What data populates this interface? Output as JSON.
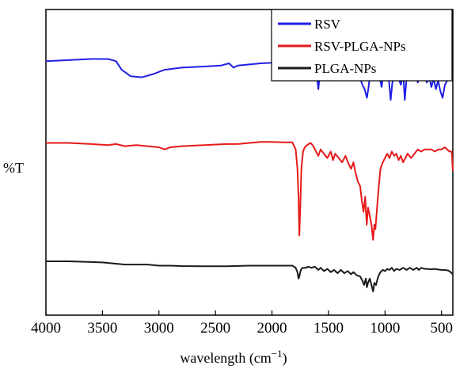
{
  "chart_data": {
    "type": "line",
    "xlabel": "wavelength (cm",
    "xlabel_sup": "−1",
    "xlabel_close": ")",
    "ylabel": "%T",
    "xlim": [
      4000,
      400
    ],
    "x_reversed": true,
    "xticks": [
      4000,
      3500,
      3000,
      2500,
      2000,
      1500,
      1000,
      500
    ],
    "legend": "top-right",
    "grid": false,
    "series": [
      {
        "name": "RSV",
        "color": "#1f1fe6",
        "points": [
          [
            4000,
            38
          ],
          [
            3800,
            38.5
          ],
          [
            3600,
            39
          ],
          [
            3450,
            39
          ],
          [
            3380,
            38
          ],
          [
            3330,
            34
          ],
          [
            3250,
            31
          ],
          [
            3150,
            30.5
          ],
          [
            3050,
            32
          ],
          [
            2950,
            34
          ],
          [
            2800,
            35
          ],
          [
            2600,
            35.5
          ],
          [
            2450,
            36
          ],
          [
            2380,
            37
          ],
          [
            2340,
            35
          ],
          [
            2300,
            36
          ],
          [
            2100,
            37
          ],
          [
            1900,
            37.5
          ],
          [
            1750,
            38.5
          ],
          [
            1680,
            39
          ],
          [
            1630,
            40
          ],
          [
            1610,
            36
          ],
          [
            1600,
            30
          ],
          [
            1590,
            25
          ],
          [
            1580,
            30
          ],
          [
            1560,
            32
          ],
          [
            1545,
            34
          ],
          [
            1530,
            37
          ],
          [
            1515,
            33
          ],
          [
            1500,
            30
          ],
          [
            1480,
            34
          ],
          [
            1460,
            31
          ],
          [
            1445,
            29
          ],
          [
            1430,
            33
          ],
          [
            1410,
            35
          ],
          [
            1380,
            36
          ],
          [
            1350,
            32
          ],
          [
            1330,
            35
          ],
          [
            1300,
            34
          ],
          [
            1270,
            31
          ],
          [
            1250,
            33
          ],
          [
            1220,
            30
          ],
          [
            1200,
            27
          ],
          [
            1180,
            25
          ],
          [
            1160,
            21
          ],
          [
            1145,
            26
          ],
          [
            1130,
            34
          ],
          [
            1110,
            32
          ],
          [
            1090,
            30
          ],
          [
            1070,
            34
          ],
          [
            1050,
            31
          ],
          [
            1030,
            26
          ],
          [
            1010,
            33
          ],
          [
            990,
            36
          ],
          [
            965,
            29
          ],
          [
            950,
            20
          ],
          [
            935,
            28
          ],
          [
            910,
            34
          ],
          [
            880,
            30
          ],
          [
            860,
            27
          ],
          [
            840,
            33
          ],
          [
            825,
            20
          ],
          [
            810,
            30
          ],
          [
            790,
            34
          ],
          [
            760,
            31
          ],
          [
            730,
            35
          ],
          [
            710,
            28
          ],
          [
            690,
            33
          ],
          [
            670,
            30
          ],
          [
            650,
            32
          ],
          [
            630,
            28
          ],
          [
            610,
            31
          ],
          [
            590,
            26
          ],
          [
            570,
            30
          ],
          [
            550,
            25
          ],
          [
            530,
            29
          ],
          [
            510,
            24
          ],
          [
            490,
            21
          ],
          [
            470,
            27
          ],
          [
            450,
            29
          ],
          [
            420,
            30
          ],
          [
            400,
            30
          ]
        ]
      },
      {
        "name": "RSV-PLGA-NPs",
        "color": "#e61a1a",
        "points": [
          [
            4000,
            0
          ],
          [
            3800,
            0
          ],
          [
            3600,
            -0.5
          ],
          [
            3450,
            -1
          ],
          [
            3380,
            -0.5
          ],
          [
            3300,
            -1.5
          ],
          [
            3200,
            -1
          ],
          [
            3100,
            -1.5
          ],
          [
            3000,
            -2
          ],
          [
            2950,
            -3
          ],
          [
            2900,
            -2
          ],
          [
            2800,
            -1.5
          ],
          [
            2600,
            -1
          ],
          [
            2400,
            -0.5
          ],
          [
            2300,
            -0.5
          ],
          [
            2200,
            0
          ],
          [
            2100,
            0.5
          ],
          [
            2000,
            0.5
          ],
          [
            1900,
            0.3
          ],
          [
            1820,
            0.3
          ],
          [
            1790,
            -3
          ],
          [
            1775,
            -12
          ],
          [
            1765,
            -25
          ],
          [
            1758,
            -43
          ],
          [
            1750,
            -30
          ],
          [
            1740,
            -12
          ],
          [
            1725,
            -4
          ],
          [
            1710,
            -2
          ],
          [
            1690,
            -1
          ],
          [
            1660,
            0
          ],
          [
            1640,
            -1
          ],
          [
            1610,
            -4
          ],
          [
            1590,
            -6
          ],
          [
            1570,
            -3
          ],
          [
            1540,
            -5
          ],
          [
            1510,
            -7
          ],
          [
            1480,
            -4
          ],
          [
            1460,
            -8
          ],
          [
            1440,
            -5
          ],
          [
            1410,
            -7
          ],
          [
            1380,
            -9
          ],
          [
            1350,
            -6
          ],
          [
            1320,
            -10
          ],
          [
            1300,
            -12
          ],
          [
            1280,
            -9
          ],
          [
            1260,
            -14
          ],
          [
            1240,
            -18
          ],
          [
            1220,
            -20
          ],
          [
            1205,
            -27
          ],
          [
            1190,
            -32
          ],
          [
            1175,
            -25
          ],
          [
            1162,
            -38
          ],
          [
            1150,
            -30
          ],
          [
            1138,
            -33
          ],
          [
            1120,
            -38
          ],
          [
            1105,
            -45
          ],
          [
            1095,
            -38
          ],
          [
            1085,
            -40
          ],
          [
            1070,
            -30
          ],
          [
            1055,
            -20
          ],
          [
            1040,
            -12
          ],
          [
            1020,
            -9
          ],
          [
            1000,
            -7
          ],
          [
            980,
            -5
          ],
          [
            960,
            -7
          ],
          [
            940,
            -4
          ],
          [
            920,
            -6
          ],
          [
            900,
            -5
          ],
          [
            880,
            -8
          ],
          [
            860,
            -6
          ],
          [
            840,
            -9
          ],
          [
            820,
            -7
          ],
          [
            800,
            -5
          ],
          [
            770,
            -7
          ],
          [
            740,
            -5
          ],
          [
            710,
            -3
          ],
          [
            680,
            -4
          ],
          [
            650,
            -3
          ],
          [
            620,
            -3
          ],
          [
            590,
            -3
          ],
          [
            560,
            -4
          ],
          [
            530,
            -3
          ],
          [
            500,
            -3
          ],
          [
            470,
            -2
          ],
          [
            450,
            -3
          ],
          [
            430,
            -4
          ],
          [
            410,
            -4
          ],
          [
            400,
            -13
          ]
        ]
      },
      {
        "name": "PLGA-NPs",
        "color": "#1a1a1a",
        "points": [
          [
            4000,
            -55
          ],
          [
            3800,
            -55
          ],
          [
            3600,
            -55.3
          ],
          [
            3500,
            -55.5
          ],
          [
            3400,
            -56
          ],
          [
            3300,
            -56.5
          ],
          [
            3200,
            -56.5
          ],
          [
            3100,
            -56.5
          ],
          [
            3000,
            -57
          ],
          [
            2900,
            -57
          ],
          [
            2800,
            -57.2
          ],
          [
            2600,
            -57.3
          ],
          [
            2400,
            -57.3
          ],
          [
            2200,
            -57
          ],
          [
            2000,
            -57
          ],
          [
            1900,
            -57
          ],
          [
            1820,
            -57
          ],
          [
            1790,
            -58
          ],
          [
            1775,
            -60
          ],
          [
            1765,
            -63
          ],
          [
            1758,
            -62
          ],
          [
            1745,
            -59
          ],
          [
            1730,
            -58
          ],
          [
            1700,
            -58
          ],
          [
            1680,
            -57.5
          ],
          [
            1650,
            -58
          ],
          [
            1620,
            -57.5
          ],
          [
            1590,
            -59
          ],
          [
            1570,
            -58
          ],
          [
            1540,
            -59.5
          ],
          [
            1510,
            -58.5
          ],
          [
            1480,
            -60
          ],
          [
            1450,
            -59
          ],
          [
            1420,
            -60.5
          ],
          [
            1390,
            -59
          ],
          [
            1360,
            -60.5
          ],
          [
            1330,
            -59.5
          ],
          [
            1300,
            -61
          ],
          [
            1280,
            -60
          ],
          [
            1250,
            -61.5
          ],
          [
            1220,
            -62
          ],
          [
            1200,
            -64
          ],
          [
            1185,
            -66
          ],
          [
            1170,
            -63
          ],
          [
            1160,
            -67
          ],
          [
            1150,
            -65
          ],
          [
            1135,
            -63
          ],
          [
            1120,
            -66
          ],
          [
            1105,
            -69
          ],
          [
            1095,
            -65
          ],
          [
            1080,
            -66
          ],
          [
            1060,
            -62
          ],
          [
            1040,
            -60
          ],
          [
            1020,
            -59
          ],
          [
            1000,
            -59.5
          ],
          [
            980,
            -58.5
          ],
          [
            960,
            -59
          ],
          [
            940,
            -58
          ],
          [
            920,
            -59.5
          ],
          [
            900,
            -58.5
          ],
          [
            870,
            -59
          ],
          [
            840,
            -58
          ],
          [
            810,
            -59
          ],
          [
            780,
            -58
          ],
          [
            750,
            -59
          ],
          [
            720,
            -58
          ],
          [
            700,
            -59
          ],
          [
            680,
            -58
          ],
          [
            650,
            -58.5
          ],
          [
            620,
            -58.5
          ],
          [
            590,
            -58.7
          ],
          [
            560,
            -58.5
          ],
          [
            530,
            -58.8
          ],
          [
            500,
            -59
          ],
          [
            470,
            -59
          ],
          [
            440,
            -59.3
          ],
          [
            420,
            -60
          ],
          [
            400,
            -61
          ]
        ]
      }
    ]
  }
}
